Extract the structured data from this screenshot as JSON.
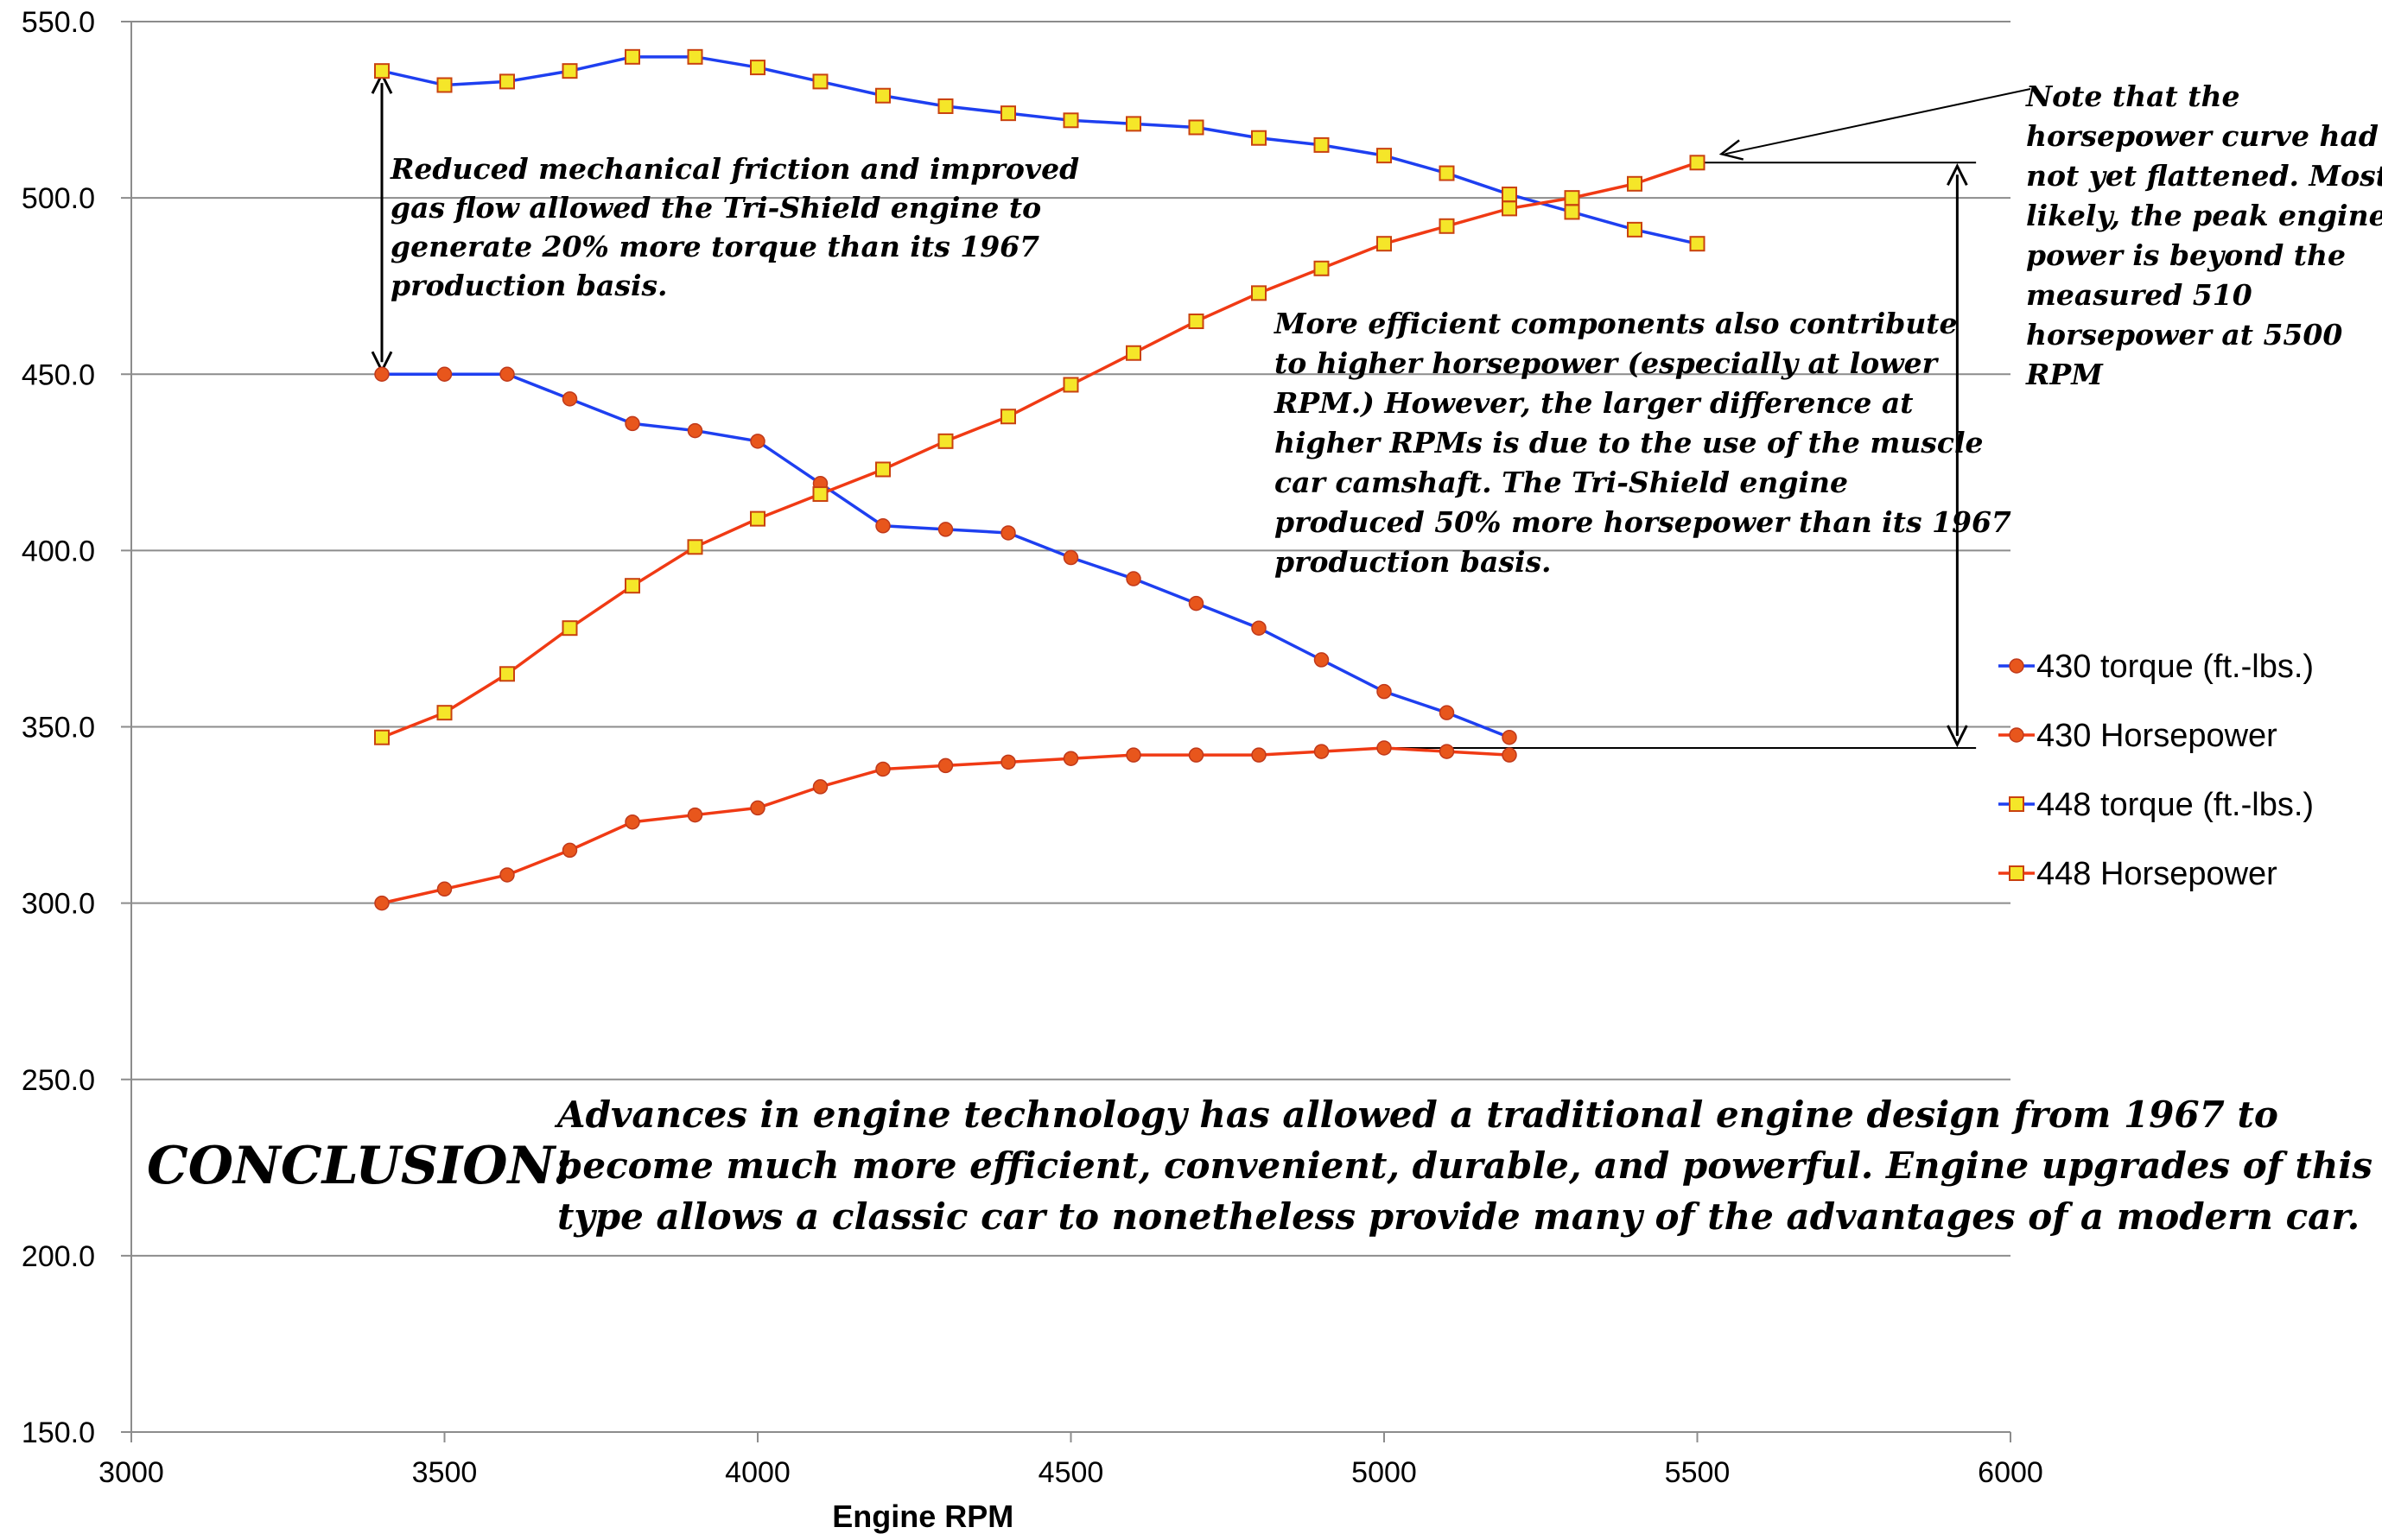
{
  "chart_data": {
    "type": "line",
    "xlabel": "Engine RPM",
    "ylabel": "",
    "xlim": [
      3000,
      6000
    ],
    "ylim": [
      150,
      550
    ],
    "x_ticks": [
      "3000",
      "3500",
      "4000",
      "4500",
      "5000",
      "5500",
      "6000"
    ],
    "y_ticks": [
      "150.0",
      "200.0",
      "250.0",
      "300.0",
      "350.0",
      "400.0",
      "450.0",
      "500.0",
      "550.0"
    ],
    "grid": "horizontal",
    "legend_position": "right",
    "series": [
      {
        "name": "430 torque (ft.-lbs.)",
        "color": "#1e3ff0",
        "marker": "circle",
        "marker_color": "#e8561c",
        "x": [
          3400,
          3500,
          3600,
          3700,
          3800,
          3900,
          4000,
          4100,
          4200,
          4300,
          4400,
          4500,
          4600,
          4700,
          4800,
          4900,
          5000,
          5100,
          5200
        ],
        "values": [
          450,
          450,
          450,
          443,
          436,
          434,
          431,
          419,
          407,
          406,
          405,
          398,
          392,
          385,
          378,
          369,
          360,
          354,
          347
        ]
      },
      {
        "name": "430 Horsepower",
        "color": "#f03a14",
        "marker": "circle",
        "marker_color": "#e8561c",
        "x": [
          3400,
          3500,
          3600,
          3700,
          3800,
          3900,
          4000,
          4100,
          4200,
          4300,
          4400,
          4500,
          4600,
          4700,
          4800,
          4900,
          5000,
          5100,
          5200
        ],
        "values": [
          300,
          304,
          308,
          315,
          323,
          325,
          327,
          333,
          338,
          339,
          340,
          341,
          342,
          342,
          342,
          343,
          344,
          343,
          342
        ]
      },
      {
        "name": "448 torque (ft.-lbs.)",
        "color": "#1e3ff0",
        "marker": "square",
        "marker_color": "#f5e629",
        "x": [
          3400,
          3500,
          3600,
          3700,
          3800,
          3900,
          4000,
          4100,
          4200,
          4300,
          4400,
          4500,
          4600,
          4700,
          4800,
          4900,
          5000,
          5100,
          5200,
          5300,
          5400,
          5500
        ],
        "values": [
          536,
          532,
          533,
          536,
          540,
          540,
          537,
          533,
          529,
          526,
          524,
          522,
          521,
          520,
          517,
          515,
          512,
          507,
          501,
          496,
          491,
          487
        ]
      },
      {
        "name": "448 Horsepower",
        "color": "#f03a14",
        "marker": "square",
        "marker_color": "#f5e629",
        "x": [
          3400,
          3500,
          3600,
          3700,
          3800,
          3900,
          4000,
          4100,
          4200,
          4300,
          4400,
          4500,
          4600,
          4700,
          4800,
          4900,
          5000,
          5100,
          5200,
          5300,
          5400,
          5500
        ],
        "values": [
          347,
          354,
          365,
          378,
          390,
          401,
          409,
          416,
          423,
          431,
          438,
          447,
          456,
          465,
          473,
          480,
          487,
          492,
          497,
          500,
          504,
          510
        ]
      }
    ],
    "annotations": [
      {
        "id": "torque_note",
        "lines": [
          "Reduced mechanical friction and improved",
          "gas flow allowed the Tri-Shield engine to",
          "generate 20% more torque than its 1967",
          "production basis."
        ]
      },
      {
        "id": "hp_note",
        "lines": [
          "More efficient components also contribute",
          "to higher horsepower (especially at lower",
          "RPM.)  However, the larger difference at",
          "higher RPMs is due to the use of the muscle",
          "car camshaft.  The Tri-Shield engine",
          "produced 50% more horsepower than its 1967",
          "production basis."
        ]
      },
      {
        "id": "curve_note",
        "lines": [
          "Note that the",
          "horsepower curve had",
          "not yet flattened.  Most",
          "likely, the peak engine",
          "power is beyond the",
          "measured 510",
          "horsepower at 5500",
          "RPM"
        ]
      }
    ],
    "conclusion": {
      "label": "CONCLUSION:",
      "lines": [
        "Advances in engine technology has allowed a traditional engine design from 1967 to",
        "become much more efficient, convenient, durable, and powerful.  Engine upgrades of this",
        "type allows a classic car to nonetheless provide many of the advantages of a modern car."
      ]
    }
  }
}
